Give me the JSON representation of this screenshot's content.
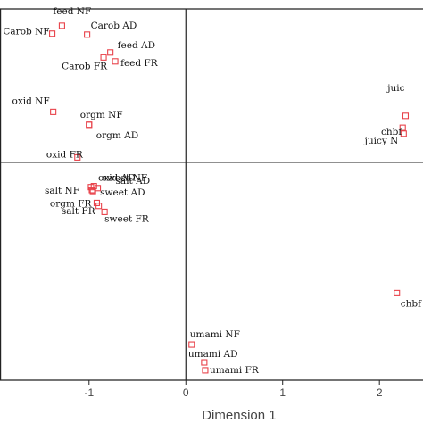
{
  "chart_data": {
    "type": "scatter",
    "xlabel": "Dimension 1",
    "ylabel": "",
    "xlim": [
      -1.92,
      2.45
    ],
    "ylim": [
      -2.2,
      1.55
    ],
    "x_ticks": [
      "-1",
      "0",
      "1",
      "2"
    ],
    "grid": false,
    "point_color": "#e8424a",
    "points": [
      {
        "label": "feed NF",
        "x": -1.28,
        "y": 1.38
      },
      {
        "label": "Carob NF",
        "x": -1.38,
        "y": 1.3
      },
      {
        "label": "Carob AD",
        "x": -1.02,
        "y": 1.29
      },
      {
        "label": "feed AD",
        "x": -0.78,
        "y": 1.11
      },
      {
        "label": "Carob FR",
        "x": -0.85,
        "y": 1.06
      },
      {
        "label": "feed FR",
        "x": -0.73,
        "y": 1.02
      },
      {
        "label": "oxid NF",
        "x": -1.37,
        "y": 0.51
      },
      {
        "label": "orgm NF",
        "x": -1.0,
        "y": 0.38
      },
      {
        "label": "orgm AD",
        "x": -1.0,
        "y": 0.38
      },
      {
        "label": "oxid FR",
        "x": -1.12,
        "y": 0.05
      },
      {
        "label": "oxid AD",
        "x": -0.98,
        "y": -0.25
      },
      {
        "label": "sweet NF",
        "x": -0.95,
        "y": -0.24
      },
      {
        "label": "salt AD",
        "x": -0.91,
        "y": -0.26
      },
      {
        "label": "sweet AD",
        "x": -0.96,
        "y": -0.29
      },
      {
        "label": "salt NF",
        "x": -0.97,
        "y": -0.28
      },
      {
        "label": "orgm FR",
        "x": -0.92,
        "y": -0.41
      },
      {
        "label": "salt FR",
        "x": -0.9,
        "y": -0.44
      },
      {
        "label": "sweet FR",
        "x": -0.84,
        "y": -0.5
      },
      {
        "label": "juic",
        "x": 2.27,
        "y": 0.47
      },
      {
        "label": "chbf",
        "x": 2.24,
        "y": 0.35
      },
      {
        "label": "juicy N",
        "x": 2.25,
        "y": 0.29
      },
      {
        "label": "chbf",
        "x": 2.18,
        "y": -1.32
      },
      {
        "label": "umami NF",
        "x": 0.06,
        "y": -1.84
      },
      {
        "label": "umami AD",
        "x": 0.19,
        "y": -2.02
      },
      {
        "label": "umami FR",
        "x": 0.2,
        "y": -2.1
      }
    ]
  }
}
